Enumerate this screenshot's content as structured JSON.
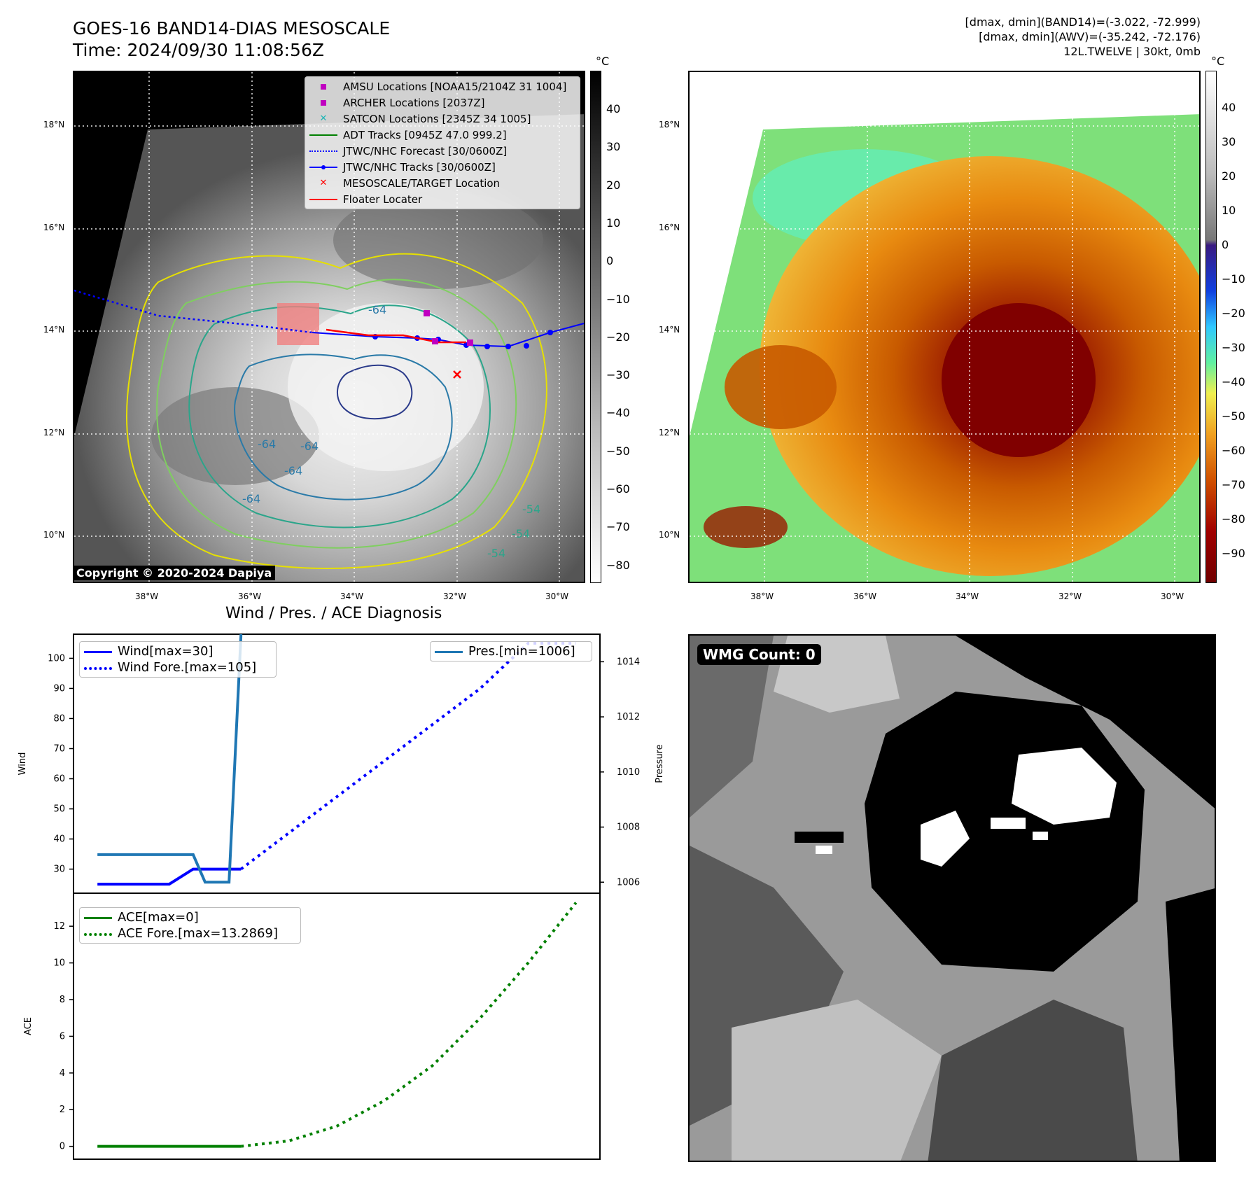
{
  "header": {
    "title_line1": "GOES-16 BAND14-DIAS MESOSCALE",
    "title_line2": "Time: 2024/09/30 11:08:56Z",
    "info_line1": "[dmax, dmin](BAND14)=(-3.022, -72.999)",
    "info_line2": "[dmax, dmin](AWV)=(-35.242, -72.176)",
    "info_line3": "12L.TWELVE | 30kt, 0mb"
  },
  "map": {
    "lat_labels": [
      "18°N",
      "16°N",
      "14°N",
      "12°N",
      "10°N"
    ],
    "lon_labels": [
      "38°W",
      "36°W",
      "34°W",
      "32°W",
      "30°W"
    ],
    "copyright": "Copyright © 2020-2024 Dapiya",
    "contour_labels": [
      "-64",
      "-64",
      "-64",
      "-64",
      "-54",
      "-54",
      "-54",
      "-64"
    ]
  },
  "colorbar_left": {
    "unit": "°C",
    "ticks": [
      "40",
      "30",
      "20",
      "10",
      "0",
      "−10",
      "−20",
      "−30",
      "−40",
      "−50",
      "−60",
      "−70",
      "−80"
    ]
  },
  "colorbar_right": {
    "unit": "°C",
    "ticks": [
      "40",
      "30",
      "20",
      "10",
      "0",
      "−10",
      "−20",
      "−30",
      "−40",
      "−50",
      "−60",
      "−70",
      "−80",
      "−90"
    ]
  },
  "map_legend": [
    {
      "label": "AMSU Locations [NOAA15/2104Z 31 1004]",
      "marker": "square",
      "color": "#c000c0"
    },
    {
      "label": "ARCHER Locations [2037Z]",
      "marker": "square",
      "color": "#c000c0"
    },
    {
      "label": "SATCON Locations [2345Z 34 1005]",
      "marker": "x",
      "color": "#1fb5b5"
    },
    {
      "label": "ADT Tracks [0945Z 47.0 999.2]",
      "marker": "line",
      "color": "#008000"
    },
    {
      "label": "JTWC/NHC Forecast [30/0600Z]",
      "marker": "dotted",
      "color": "#0000ff"
    },
    {
      "label": "JTWC/NHC Tracks [30/0600Z]",
      "marker": "line-dot",
      "color": "#0000ff"
    },
    {
      "label": "MESOSCALE/TARGET Location",
      "marker": "x",
      "color": "#ff0000"
    },
    {
      "label": "Floater Locater",
      "marker": "line",
      "color": "#ff0000"
    }
  ],
  "diag": {
    "title": "Wind / Pres. / ACE Diagnosis",
    "wind_ylabel": "Wind",
    "pres_ylabel": "Pressure",
    "ace_ylabel": "ACE",
    "legend_wind": "Wind[max=30]",
    "legend_wind_fore": "Wind Fore.[max=105]",
    "legend_pres": "Pres.[min=1006]",
    "legend_ace": "ACE[max=0]",
    "legend_ace_fore": "ACE Fore.[max=13.2869]",
    "wind_ticks": [
      "100",
      "90",
      "80",
      "70",
      "60",
      "50",
      "40",
      "30"
    ],
    "pres_ticks": [
      "1014",
      "1012",
      "1010",
      "1008",
      "1006"
    ],
    "ace_ticks": [
      "12",
      "10",
      "8",
      "6",
      "4",
      "2",
      "0"
    ]
  },
  "wmg": {
    "badge": "WMG Count: 0"
  },
  "chart_data": [
    {
      "type": "line",
      "title": "Wind / Pres. / ACE Diagnosis",
      "ylabel": "Wind",
      "ylim": [
        22,
        108
      ],
      "series": [
        {
          "name": "Wind[max=30]",
          "x": [
            0,
            1,
            2,
            3,
            4,
            5,
            6
          ],
          "values": [
            25,
            25,
            25,
            25,
            30,
            30,
            30
          ],
          "color": "#0000ff",
          "style": "solid"
        },
        {
          "name": "Wind Fore.[max=105]",
          "x": [
            6,
            8,
            10,
            12,
            14,
            16,
            18,
            20
          ],
          "values": [
            30,
            42,
            54,
            66,
            78,
            90,
            105,
            105
          ],
          "color": "#0000ff",
          "style": "dotted"
        }
      ]
    },
    {
      "type": "line",
      "ylabel": "Pressure",
      "ylim": [
        1005.6,
        1015.0
      ],
      "series": [
        {
          "name": "Pres.[min=1006]",
          "x": [
            0,
            1,
            2,
            3,
            4,
            4.5,
            5,
            5.5,
            6
          ],
          "values": [
            1007,
            1007,
            1007,
            1007,
            1007,
            1006,
            1006,
            1006,
            1015
          ],
          "color": "#1f77b4",
          "style": "solid"
        }
      ]
    },
    {
      "type": "line",
      "ylabel": "ACE",
      "ylim": [
        -0.7,
        13.8
      ],
      "series": [
        {
          "name": "ACE[max=0]",
          "x": [
            0,
            6
          ],
          "values": [
            0,
            0
          ],
          "color": "#008000",
          "style": "solid"
        },
        {
          "name": "ACE Fore.[max=13.2869]",
          "x": [
            6,
            8,
            10,
            12,
            14,
            16,
            18,
            20
          ],
          "values": [
            0,
            0.3,
            1.1,
            2.5,
            4.4,
            7.0,
            10.0,
            13.2869
          ],
          "color": "#008000",
          "style": "dotted"
        }
      ]
    }
  ],
  "colors": {
    "wind": "#0000ff",
    "pressure": "#1f77b4",
    "ace": "#008000"
  }
}
